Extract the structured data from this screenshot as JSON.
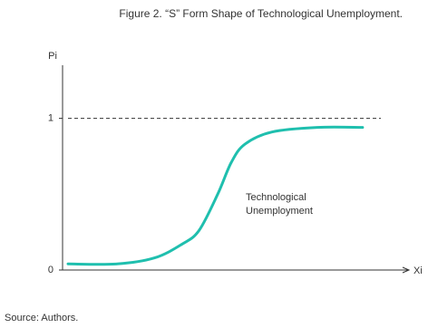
{
  "chart_data": {
    "type": "line",
    "title": "Figure 2. “S” Form Shape of Technological Unemployment.",
    "x_label": "Xi",
    "y_label": "Pi",
    "annotation": "Technological Unemployment",
    "source": "Source: Authors.",
    "x": [
      1.6,
      16,
      27,
      35,
      40,
      45.5,
      49.5,
      53.5,
      61.4,
      74.7,
      88
    ],
    "series": [
      {
        "color": "#1fbfae",
        "values": [
          0.04,
          0.04,
          0.08,
          0.17,
          0.26,
          0.5,
          0.71,
          0.83,
          0.91,
          0.94,
          0.94
        ]
      }
    ],
    "xlim": [
      0,
      100
    ],
    "ylim": [
      0,
      1.35
    ],
    "yticks": [
      0,
      1
    ],
    "reference_line": 1
  }
}
